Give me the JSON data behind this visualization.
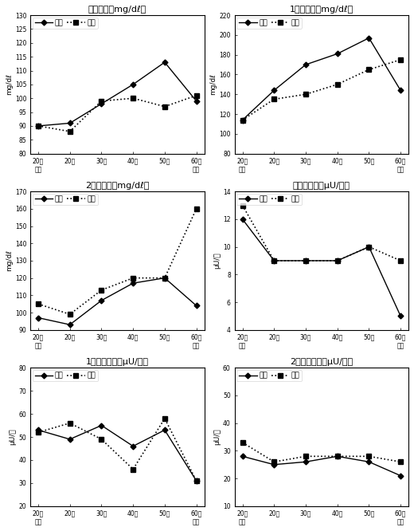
{
  "categories": [
    "20대\n미만",
    "20대",
    "30대",
    "40대",
    "50대",
    "60대\n이상"
  ],
  "plots": [
    {
      "title": "공복혈당（mg/dℓ）",
      "ylabel": "mg/dℓ",
      "ylim": [
        80,
        130
      ],
      "yticks": [
        80,
        85,
        90,
        95,
        100,
        105,
        110,
        115,
        120,
        125,
        130
      ],
      "male": [
        90,
        91,
        98,
        105,
        113,
        99
      ],
      "female": [
        90,
        88,
        99,
        100,
        97,
        101
      ]
    },
    {
      "title": "1시간혈당（mg/dℓ）",
      "ylabel": "mg/dℓ",
      "ylim": [
        80,
        220
      ],
      "yticks": [
        80,
        100,
        120,
        140,
        160,
        180,
        200,
        220
      ],
      "male": [
        114,
        144,
        170,
        181,
        197,
        144
      ],
      "female": [
        114,
        135,
        140,
        150,
        165,
        175
      ]
    },
    {
      "title": "2시간혈당（mg/dℓ）",
      "ylabel": "mg/dℓ",
      "ylim": [
        90,
        170
      ],
      "yticks": [
        90,
        100,
        110,
        120,
        130,
        140,
        150,
        160,
        170
      ],
      "male": [
        97,
        93,
        107,
        117,
        120,
        104
      ],
      "female": [
        105,
        99,
        113,
        120,
        120,
        160
      ]
    },
    {
      "title": "공복인슐린（μU/㎖）",
      "ylabel": "μU/㎖",
      "ylim": [
        4,
        14
      ],
      "yticks": [
        4,
        6,
        8,
        10,
        12,
        14
      ],
      "male": [
        12,
        9,
        9,
        9,
        10,
        5
      ],
      "female": [
        13,
        9,
        9,
        9,
        10,
        9
      ]
    },
    {
      "title": "1시간인슐린（μU/㎖）",
      "ylabel": "μU/㎖",
      "ylim": [
        20,
        80
      ],
      "yticks": [
        20,
        30,
        40,
        50,
        60,
        70,
        80
      ],
      "male": [
        53,
        49,
        55,
        46,
        53,
        31
      ],
      "female": [
        52,
        56,
        49,
        36,
        58,
        31
      ]
    },
    {
      "title": "2시간인슐린（μU/㎖）",
      "ylabel": "μU/㎖",
      "ylim": [
        10,
        60
      ],
      "yticks": [
        10,
        20,
        30,
        40,
        50,
        60
      ],
      "male": [
        28,
        25,
        26,
        28,
        26,
        21
      ],
      "female": [
        33,
        26,
        28,
        28,
        28,
        26
      ]
    }
  ],
  "legend_male": "남자",
  "legend_female": "여자",
  "title_fontsize": 8,
  "label_fontsize": 6.5,
  "tick_fontsize": 5.5,
  "legend_fontsize": 6.5
}
